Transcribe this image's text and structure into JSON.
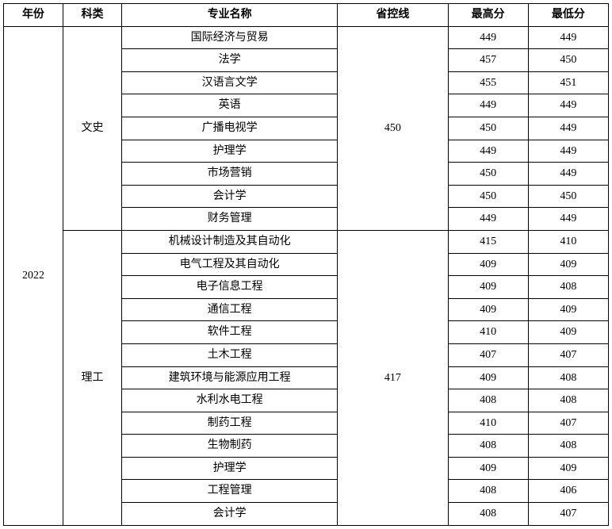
{
  "table": {
    "headers": {
      "year": "年份",
      "category": "科类",
      "major": "专业名称",
      "province_line": "省控线",
      "high": "最高分",
      "low": "最低分"
    },
    "year": "2022",
    "groups": [
      {
        "category": "文史",
        "province_line": "450",
        "rows": [
          {
            "major": "国际经济与贸易",
            "high": "449",
            "low": "449"
          },
          {
            "major": "法学",
            "high": "457",
            "low": "450"
          },
          {
            "major": "汉语言文学",
            "high": "455",
            "low": "451"
          },
          {
            "major": "英语",
            "high": "449",
            "low": "449"
          },
          {
            "major": "广播电视学",
            "high": "450",
            "low": "449"
          },
          {
            "major": "护理学",
            "high": "449",
            "low": "449"
          },
          {
            "major": "市场营销",
            "high": "450",
            "low": "449"
          },
          {
            "major": "会计学",
            "high": "450",
            "low": "450"
          },
          {
            "major": "财务管理",
            "high": "449",
            "low": "449"
          }
        ]
      },
      {
        "category": "理工",
        "province_line": "417",
        "rows": [
          {
            "major": "机械设计制造及其自动化",
            "high": "415",
            "low": "410"
          },
          {
            "major": "电气工程及其自动化",
            "high": "409",
            "low": "409"
          },
          {
            "major": "电子信息工程",
            "high": "409",
            "low": "408"
          },
          {
            "major": "通信工程",
            "high": "409",
            "low": "409"
          },
          {
            "major": "软件工程",
            "high": "410",
            "low": "409"
          },
          {
            "major": "土木工程",
            "high": "407",
            "low": "407"
          },
          {
            "major": "建筑环境与能源应用工程",
            "high": "409",
            "low": "408"
          },
          {
            "major": "水利水电工程",
            "high": "408",
            "low": "408"
          },
          {
            "major": "制药工程",
            "high": "410",
            "low": "407"
          },
          {
            "major": "生物制药",
            "high": "408",
            "low": "408"
          },
          {
            "major": "护理学",
            "high": "409",
            "low": "409"
          },
          {
            "major": "工程管理",
            "high": "408",
            "low": "406"
          },
          {
            "major": "会计学",
            "high": "408",
            "low": "407"
          }
        ]
      }
    ]
  }
}
